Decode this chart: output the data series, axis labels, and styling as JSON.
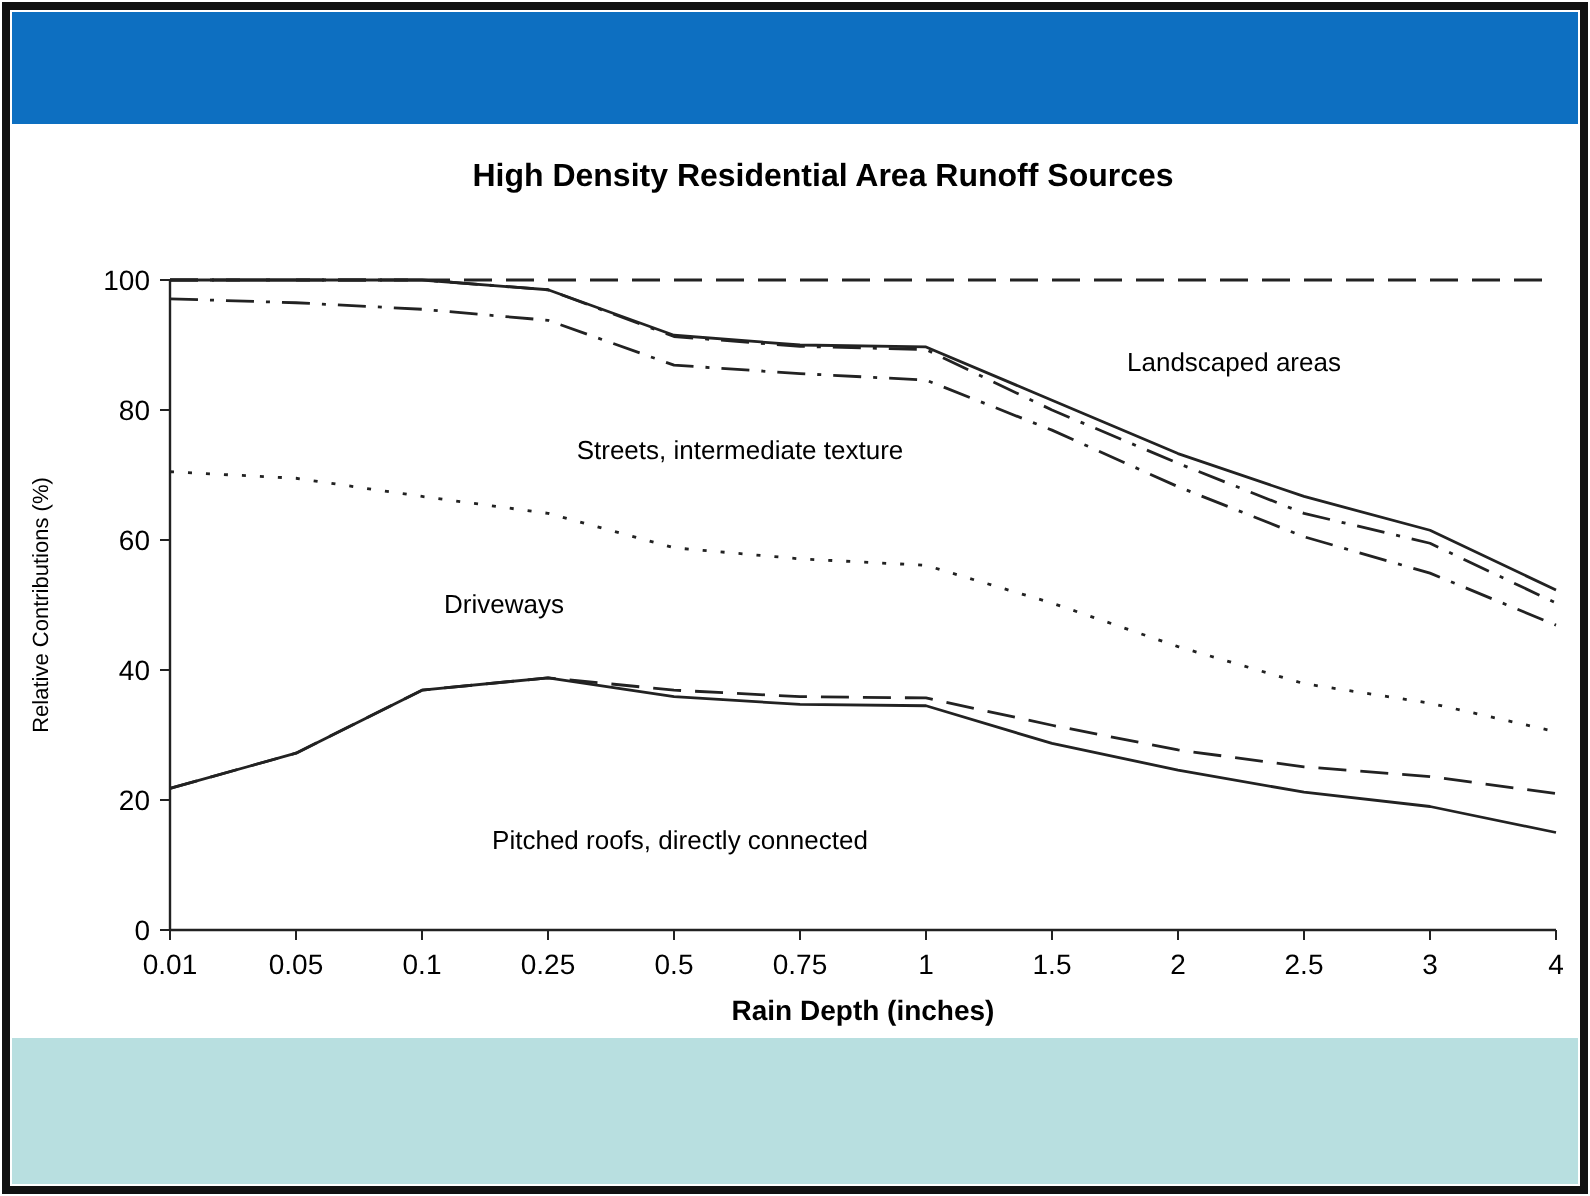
{
  "chart_data": {
    "type": "line",
    "title": "High Density Residential Area Runoff Sources",
    "xlabel": "Rain Depth (inches)",
    "ylabel": "Relative Contributions (%)",
    "categories": [
      "0.01",
      "0.05",
      "0.1",
      "0.25",
      "0.5",
      "0.75",
      "1",
      "1.5",
      "2",
      "2.5",
      "3",
      "4"
    ],
    "ylim": [
      0,
      100
    ],
    "yticks": [
      0,
      20,
      40,
      60,
      80,
      100
    ],
    "grid": false,
    "marker": "none",
    "series": [
      {
        "color": "#222222",
        "line_style": "solid",
        "values": [
          21.8,
          27.2,
          36.9,
          38.8,
          35.9,
          34.7,
          34.5,
          28.7,
          24.6,
          21.2,
          19,
          15
        ]
      },
      {
        "color": "#222222",
        "line_style": "dashed",
        "values": [
          21.8,
          27.2,
          36.9,
          38.8,
          36.9,
          35.9,
          35.7,
          31.5,
          27.7,
          25.1,
          23.6,
          21
        ]
      },
      {
        "color": "#222222",
        "line_style": "dotted",
        "values": [
          70.5,
          69.5,
          66.7,
          64.1,
          58.8,
          57.1,
          56.1,
          50.3,
          43.6,
          37.9,
          34.9,
          30.5
        ]
      },
      {
        "color": "#222222",
        "line_style": "dashdot",
        "values": [
          97.1,
          96.5,
          95.5,
          93.8,
          86.9,
          85.6,
          84.6,
          76.9,
          68.2,
          60.5,
          54.9,
          46.9
        ]
      },
      {
        "color": "#222222",
        "line_style": "dashdot",
        "values": [
          100,
          100,
          100,
          98.5,
          91.3,
          89.8,
          89.3,
          80,
          71.8,
          64.1,
          59.5,
          50.3
        ]
      },
      {
        "color": "#222222",
        "line_style": "solid",
        "values": [
          100,
          100,
          100,
          98.5,
          91.5,
          90,
          89.7,
          81.5,
          73.3,
          66.7,
          61.5,
          52.3
        ]
      },
      {
        "color": "#222222",
        "line_style": "dashed",
        "values": [
          100,
          100,
          100,
          100,
          100,
          100,
          100,
          100,
          100,
          100,
          100,
          100
        ]
      }
    ],
    "annotations": [
      "Landscaped areas",
      "Streets, intermediate texture",
      "Driveways",
      "Pitched roofs, directly connected"
    ]
  }
}
